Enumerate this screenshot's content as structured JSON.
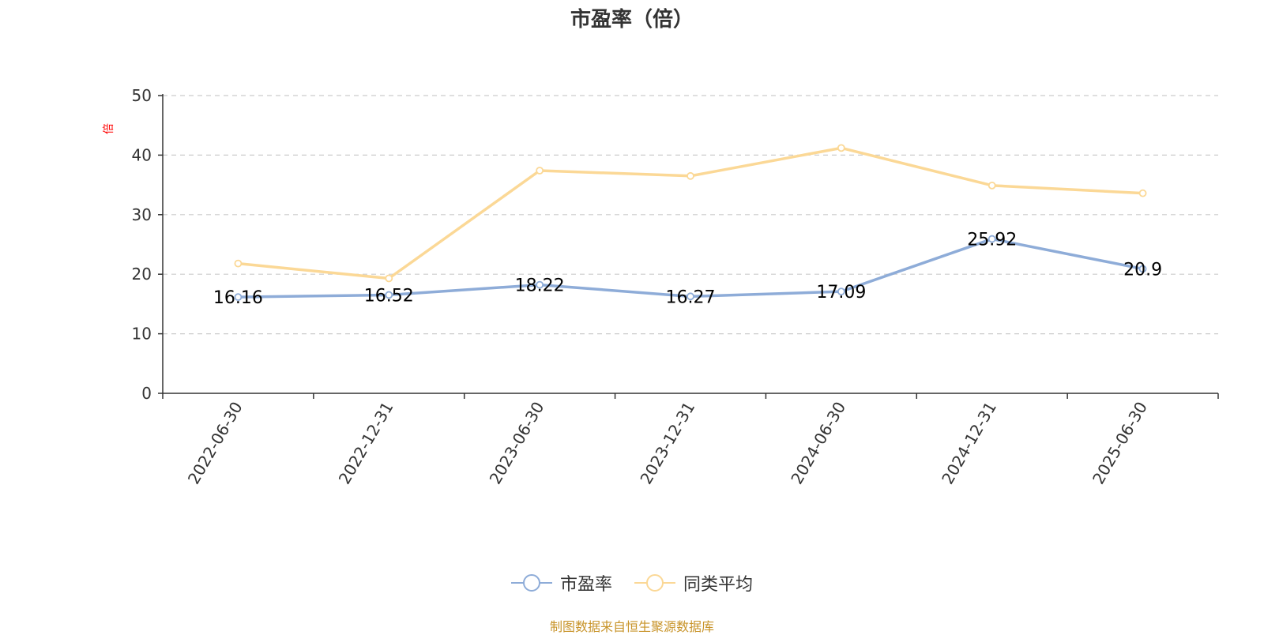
{
  "chart_data": {
    "type": "line",
    "title": "市盈率（倍）",
    "ylabel": "倍",
    "xlabel": "",
    "ylim": [
      0,
      50
    ],
    "yticks": [
      "0",
      "10",
      "20",
      "30",
      "40",
      "50"
    ],
    "categories": [
      "2022-06-30",
      "2022-12-31",
      "2023-06-30",
      "2023-12-31",
      "2024-06-30",
      "2024-12-31",
      "2025-06-30"
    ],
    "series": [
      {
        "name": "市盈率",
        "values": [
          16.16,
          16.52,
          18.22,
          16.27,
          17.09,
          25.92,
          20.9
        ],
        "labels": [
          "16.16",
          "16.52",
          "18.22",
          "16.27",
          "17.09",
          "25.92",
          "20.9"
        ],
        "color": "#8eacd8"
      },
      {
        "name": "同类平均",
        "values": [
          21.8,
          19.3,
          37.4,
          36.5,
          41.2,
          34.9,
          33.6
        ],
        "color": "#fbd896"
      }
    ],
    "grid": true,
    "legend_position": "bottom-center"
  },
  "source": "制图数据来自恒生聚源数据库"
}
